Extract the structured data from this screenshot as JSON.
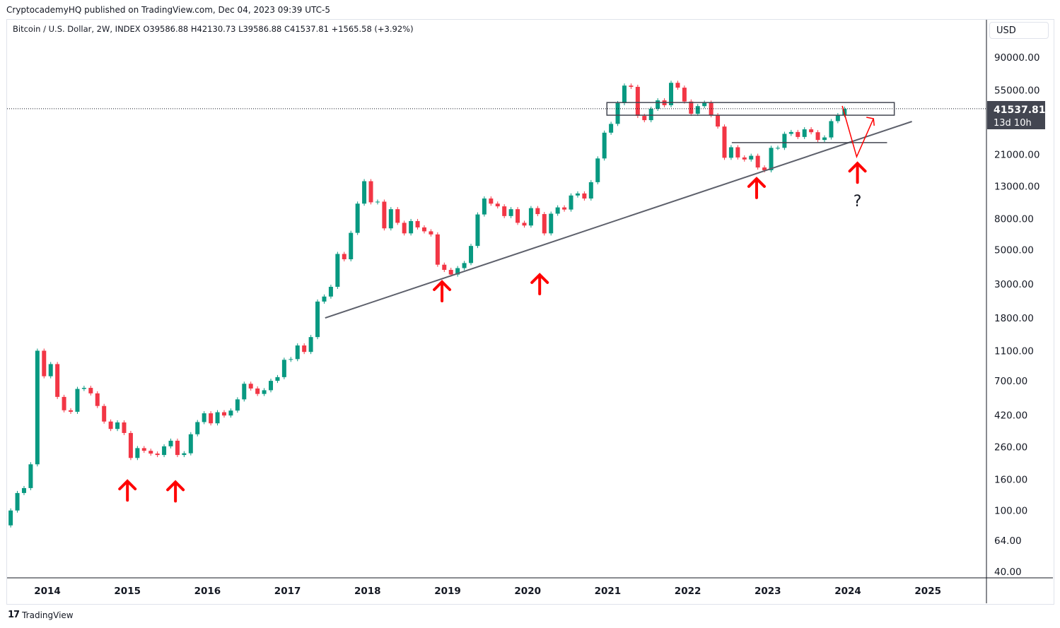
{
  "publisher_line": "CryptocademyHQ published on TradingView.com, Dec 04, 2023 09:39 UTC-5",
  "legend": "Bitcoin / U.S. Dollar, 2W, INDEX  O39586.88  H42130.73  L39586.88  C41537.81  +1565.58 (+3.92%)",
  "currency": "USD",
  "brand": "TradingView",
  "colors": {
    "up": "#089981",
    "down": "#f23645",
    "annotation": "#ff0000",
    "trendline": "#5d606b"
  },
  "chart_data": {
    "type": "candlestick",
    "title": "Bitcoin / U.S. Dollar, 2W, INDEX",
    "y_scale": "log",
    "ylim": [
      35,
      130000
    ],
    "xlim": [
      2013.5,
      2025.8
    ],
    "grid": false,
    "y_ticks": [
      "90000.00",
      "55000.00",
      "21000.00",
      "13000.00",
      "8000.00",
      "5000.00",
      "3000.00",
      "1800.00",
      "1100.00",
      "700.00",
      "420.00",
      "260.00",
      "160.00",
      "100.00",
      "64.00",
      "40.00"
    ],
    "x_ticks": [
      "2014",
      "2015",
      "2016",
      "2017",
      "2018",
      "2019",
      "2020",
      "2021",
      "2022",
      "2023",
      "2024",
      "2025"
    ],
    "last_price": {
      "value": "41537.81",
      "countdown": "13d 10h"
    },
    "approx_monthly_closes_start": "2013-07",
    "closes": [
      100,
      130,
      140,
      200,
      1100,
      750,
      900,
      550,
      450,
      440,
      620,
      630,
      580,
      480,
      380,
      340,
      375,
      320,
      220,
      255,
      245,
      235,
      230,
      262,
      285,
      230,
      236,
      314,
      377,
      430,
      370,
      437,
      416,
      448,
      530,
      670,
      624,
      575,
      608,
      700,
      740,
      960,
      970,
      1190,
      1080,
      1350,
      2300,
      2480,
      2870,
      4700,
      4340,
      6450,
      10000,
      14000,
      10200,
      10300,
      6900,
      9200,
      7500,
      6400,
      7700,
      7000,
      6600,
      6300,
      4000,
      3700,
      3450,
      3800,
      4100,
      5300,
      8500,
      10800,
      10000,
      9600,
      8300,
      9200,
      7500,
      7200,
      9350,
      8550,
      6400,
      8600,
      9450,
      9150,
      11300,
      11650,
      10800,
      13800,
      19700,
      29000,
      33100,
      45200,
      58800,
      57700,
      37300,
      35000,
      41500,
      47100,
      43800,
      61300,
      57000,
      46300,
      38500,
      43200,
      45500,
      37700,
      31800,
      19900,
      23300,
      20000,
      19400,
      20500,
      17200,
      16500,
      23100,
      23100,
      28500,
      29300,
      27200,
      30500,
      29200,
      26000,
      27000,
      34500,
      37700,
      41537.81
    ],
    "drawings": {
      "trendline": [
        [
          2017.47,
          1800
        ],
        [
          2024.8,
          34300
        ]
      ],
      "resistance_box": {
        "x": [
          2020.99,
          2024.58
        ],
        "price": [
          37700,
          45600
        ]
      },
      "support_line": {
        "x": [
          2022.55,
          2024.49
        ],
        "price": 25000
      },
      "projection_path": [
        [
          2023.93,
          43300
        ],
        [
          2024.11,
          20200
        ],
        [
          2024.32,
          35800
        ]
      ],
      "arrows_up": [
        [
          2015.0,
          157
        ],
        [
          2015.6,
          155
        ],
        [
          2018.93,
          3125
        ],
        [
          2020.15,
          3475
        ],
        [
          2022.86,
          14700
        ],
        [
          2024.12,
          18500
        ]
      ],
      "question_mark": {
        "text": "?",
        "at": [
          2024.12,
          10700
        ]
      }
    }
  }
}
